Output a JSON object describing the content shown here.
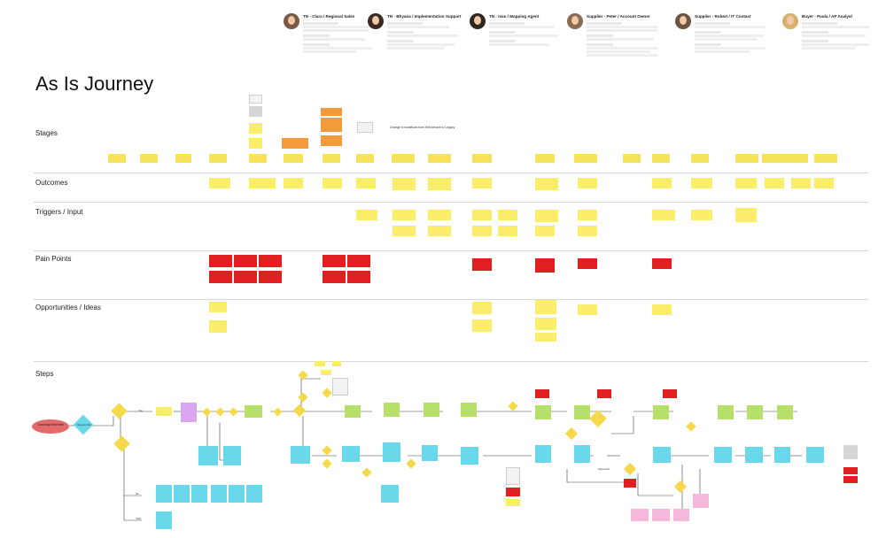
{
  "title": "As Is Journey",
  "rows": {
    "stages": "Stages",
    "outcomes": "Outcomes",
    "triggers": "Triggers / Input",
    "pain_points": "Pain Points",
    "opportunities": "Opportunities / Ideas",
    "steps": "Steps"
  },
  "personas": [
    {
      "name": "TN - Clara / Regional Sales",
      "avatar_color": "#7a5a44"
    },
    {
      "name": "TN - Bhyana / Implementation Support",
      "avatar_color": "#3b2a22"
    },
    {
      "name": "TN - Ivan / Mapping Agent",
      "avatar_color": "#2e2722"
    },
    {
      "name": "Supplier - Peter / Account Owner",
      "avatar_color": "#8a6a52"
    },
    {
      "name": "Supplier - Robert / IT Contact",
      "avatar_color": "#6a5444"
    },
    {
      "name": "Buyer - Paula / AP Analyst",
      "avatar_color": "#d8b070"
    }
  ],
  "annotations": {
    "workflow_change": "Change in workflows from Self-service to Legacy"
  },
  "flow_labels": {
    "campaign": "Campaign Microsite",
    "register": "Register Now",
    "yes": "Yes",
    "no": "No",
    "yes_yes": "YES",
    "approved": "Approved",
    "manual_step": "Manual Step"
  },
  "colors": {
    "yellow": "#f6e35a",
    "orange": "#f39a3c",
    "red": "#e02020",
    "green": "#b7e06a",
    "cyan": "#69d8ea",
    "purple": "#d9a6ef",
    "pink": "#f6b7dd",
    "campaign_red": "#e46a6a"
  }
}
